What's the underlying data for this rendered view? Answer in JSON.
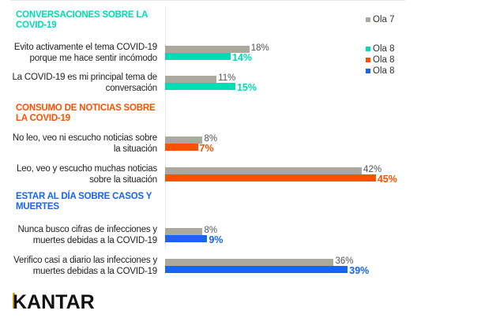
{
  "chart_data": {
    "type": "bar",
    "orientation": "horizontal",
    "unit": "%",
    "legend": {
      "position": "top-right",
      "entries": [
        "Ola 7",
        "Ola 8",
        "Ola 8",
        "Ola 8"
      ]
    },
    "colors": {
      "ola7": "#aba99b",
      "teal": "#00dcb4",
      "orange": "#ff5000",
      "blue": "#1665f5"
    },
    "sections": [
      {
        "title": "CONVERSACIONES SOBRE LA COVID-19",
        "color": "#00dcb4",
        "items": [
          {
            "label": [
              "Evito activamente el tema COVID-19",
              "porque me hace sentir incómodo"
            ],
            "ola7": 18,
            "ola8": 14
          },
          {
            "label": [
              "La COVID-19 es mi principal tema de",
              "conversación"
            ],
            "ola7": 11,
            "ola8": 15
          }
        ]
      },
      {
        "title": "CONSUMO DE NOTICIAS SOBRE LA COVID-19",
        "color": "#ff5000",
        "items": [
          {
            "label": [
              "No leo, veo ni escucho noticias sobre",
              "la situación"
            ],
            "ola7": 8,
            "ola8": 7
          },
          {
            "label": [
              "Leo, veo y escucho muchas noticias",
              "sobre la situación"
            ],
            "ola7": 42,
            "ola8": 45
          }
        ]
      },
      {
        "title": "ESTAR AL DÍA SOBRE CASOS Y MUERTES",
        "color": "#1665f5",
        "items": [
          {
            "label": [
              "Nunca busco cifras de infecciones y",
              "muertes debidas a la COVID-19"
            ],
            "ola7": 8,
            "ola8": 9
          },
          {
            "label": [
              "Verifico casi a diario las infecciones y",
              "muertes debidas a la COVID-19"
            ],
            "ola7": 36,
            "ola8": 39
          }
        ]
      }
    ]
  },
  "logo": "KANTAR"
}
